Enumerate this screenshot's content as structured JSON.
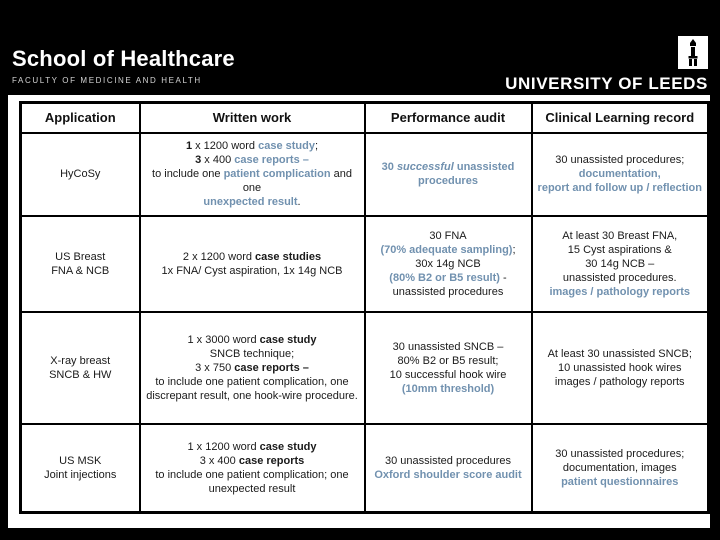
{
  "slide": {
    "colors": {
      "accent_blue": "#7191af",
      "background": "#000000"
    },
    "header": {
      "school_logo_title": "School of Healthcare",
      "school_logo_subtitle": "FACULTY OF MEDICINE AND HEALTH",
      "university_logo_text": "UNIVERSITY OF LEEDS",
      "university_logo_icon": "leeds-tower-icon"
    },
    "table": {
      "columns": [
        "Application",
        "Written work",
        "Performance audit",
        "Clinical Learning record"
      ],
      "rows": [
        {
          "application": [
            "HyCoSy"
          ],
          "written_work": [
            [
              [
                "b",
                "1"
              ],
              [
                "n",
                " x 1200 word "
              ],
              [
                "a",
                "case study"
              ],
              [
                "n",
                ";"
              ]
            ],
            [
              [
                "b",
                "3"
              ],
              [
                "n",
                " x 400 "
              ],
              [
                "a",
                "case reports –"
              ]
            ],
            [
              [
                "n",
                "to include one "
              ],
              [
                "a",
                "patient complication"
              ],
              [
                "n",
                " and one"
              ]
            ],
            [
              [
                "a",
                "unexpected result"
              ],
              [
                "n",
                "."
              ]
            ]
          ],
          "performance_audit": [
            [
              [
                "a",
                "30 "
              ],
              [
                "ai",
                "successful"
              ],
              [
                "a",
                " unassisted"
              ]
            ],
            [
              [
                "a",
                "procedures"
              ]
            ]
          ],
          "clinical_learning_record": [
            [
              [
                "n",
                "30 unassisted procedures;"
              ]
            ],
            [
              [
                "a",
                "documentation,"
              ]
            ],
            [
              [
                "a",
                "report and follow up / reflection"
              ]
            ]
          ]
        },
        {
          "application": [
            "US Breast",
            "FNA & NCB"
          ],
          "written_work": [
            [
              [
                "n",
                "2 x 1200 word "
              ],
              [
                "b",
                "case studies"
              ]
            ],
            [
              [
                "n",
                "1x FNA/ Cyst aspiration, 1x 14g NCB"
              ]
            ]
          ],
          "performance_audit": [
            [
              [
                "n",
                "30 FNA"
              ]
            ],
            [
              [
                "a",
                "(70% adequate sampling)"
              ],
              [
                "n",
                ";"
              ]
            ],
            [
              [
                "n",
                "30x 14g NCB"
              ]
            ],
            [
              [
                "a",
                "(80% B2 or B5 result)"
              ],
              [
                "n",
                " -"
              ]
            ],
            [
              [
                "n",
                "unassisted procedures"
              ]
            ]
          ],
          "clinical_learning_record": [
            [
              [
                "n",
                "At least 30 Breast FNA,"
              ]
            ],
            [
              [
                "n",
                "15 Cyst aspirations &"
              ]
            ],
            [
              [
                "n",
                "30 14g NCB –"
              ]
            ],
            [
              [
                "n",
                "unassisted procedures."
              ]
            ],
            [
              [
                "a",
                "images / pathology reports"
              ]
            ]
          ]
        },
        {
          "application": [
            "X-ray breast",
            "SNCB & HW"
          ],
          "written_work": [
            [
              [
                "n",
                "1 x 3000 word "
              ],
              [
                "b",
                "case study"
              ]
            ],
            [
              [
                "n",
                "SNCB technique;"
              ]
            ],
            [
              [
                "n",
                "3 x 750 "
              ],
              [
                "b",
                "case reports –"
              ]
            ],
            [
              [
                "n",
                "to include one patient complication, one"
              ]
            ],
            [
              [
                "n",
                "discrepant result, one hook-wire procedure."
              ]
            ]
          ],
          "performance_audit": [
            [
              [
                "n",
                "30 unassisted SNCB –"
              ]
            ],
            [
              [
                "n",
                "80% B2 or B5 result;"
              ]
            ],
            [
              [
                "n",
                "10 successful hook wire"
              ]
            ],
            [
              [
                "a",
                "(10mm threshold)"
              ]
            ]
          ],
          "clinical_learning_record": [
            [
              [
                "n",
                "At least 30 unassisted SNCB;"
              ]
            ],
            [
              [
                "n",
                "10 unassisted hook wires"
              ]
            ],
            [
              [
                "n",
                "images / pathology reports"
              ]
            ]
          ]
        },
        {
          "application": [
            "US MSK",
            "Joint injections"
          ],
          "written_work": [
            [
              [
                "n",
                "1 x 1200 word "
              ],
              [
                "b",
                "case study"
              ]
            ],
            [
              [
                "n",
                "3 x 400 "
              ],
              [
                "b",
                "case reports"
              ]
            ],
            [
              [
                "n",
                "to include one patient complication; one"
              ]
            ],
            [
              [
                "n",
                "unexpected result"
              ]
            ]
          ],
          "performance_audit": [
            [
              [
                "n",
                "30 unassisted procedures"
              ]
            ],
            [
              [
                "a",
                "Oxford shoulder score audit"
              ]
            ]
          ],
          "clinical_learning_record": [
            [
              [
                "n",
                "30 unassisted procedures;"
              ]
            ],
            [
              [
                "n",
                "documentation, images"
              ]
            ],
            [
              [
                "a",
                "patient questionnaires"
              ]
            ]
          ]
        }
      ]
    }
  }
}
